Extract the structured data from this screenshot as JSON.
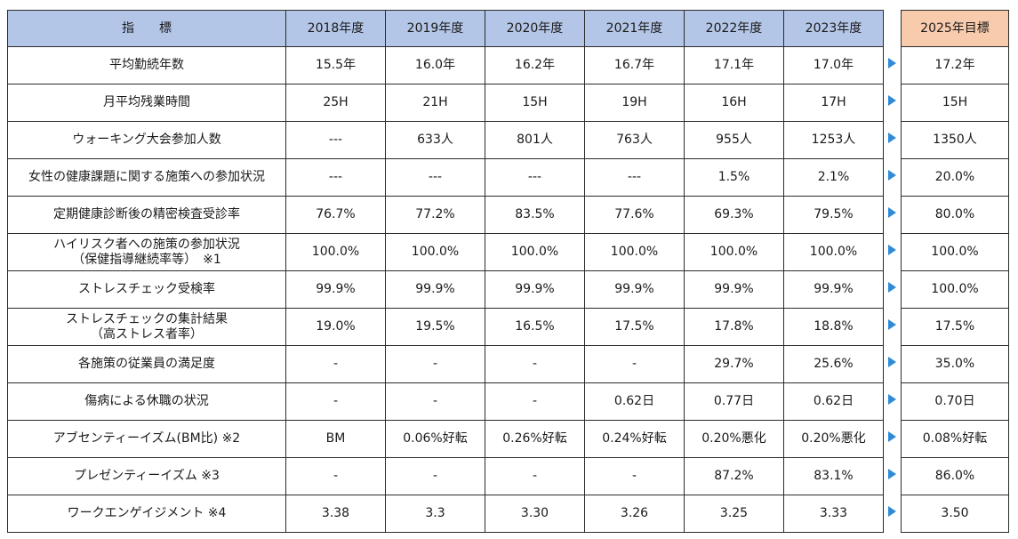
{
  "table": {
    "header": {
      "indicator_label": "指　　標",
      "years": [
        "2018年度",
        "2019年度",
        "2020年度",
        "2021年度",
        "2022年度",
        "2023年度"
      ],
      "target": "2025年目標"
    },
    "rows": [
      {
        "label": [
          "平均勤続年数"
        ],
        "values": [
          "15.5年",
          "16.0年",
          "16.2年",
          "16.7年",
          "17.1年",
          "17.0年"
        ],
        "target": "17.2年"
      },
      {
        "label": [
          "月平均残業時間"
        ],
        "values": [
          "25H",
          "21H",
          "15H",
          "19H",
          "16H",
          "17H"
        ],
        "target": "15H"
      },
      {
        "label": [
          "ウォーキング大会参加人数"
        ],
        "values": [
          "---",
          "633人",
          "801人",
          "763人",
          "955人",
          "1253人"
        ],
        "target": "1350人"
      },
      {
        "label": [
          "女性の健康課題に関する施策への参加状況"
        ],
        "values": [
          "---",
          "---",
          "---",
          "---",
          "1.5%",
          "2.1%"
        ],
        "target": "20.0%"
      },
      {
        "label": [
          "定期健康診断後の精密検査受診率"
        ],
        "values": [
          "76.7%",
          "77.2%",
          "83.5%",
          "77.6%",
          "69.3%",
          "79.5%"
        ],
        "target": "80.0%"
      },
      {
        "label": [
          "ハイリスク者への施策の参加状況",
          "（保健指導継続率等）　※1"
        ],
        "values": [
          "100.0%",
          "100.0%",
          "100.0%",
          "100.0%",
          "100.0%",
          "100.0%"
        ],
        "target": "100.0%"
      },
      {
        "label": [
          "ストレスチェック受検率"
        ],
        "values": [
          "99.9%",
          "99.9%",
          "99.9%",
          "99.9%",
          "99.9%",
          "99.9%"
        ],
        "target": "100.0%"
      },
      {
        "label": [
          "ストレスチェックの集計結果",
          "（高ストレス者率）"
        ],
        "values": [
          "19.0%",
          "19.5%",
          "16.5%",
          "17.5%",
          "17.8%",
          "18.8%"
        ],
        "target": "17.5%"
      },
      {
        "label": [
          "各施策の従業員の満足度"
        ],
        "values": [
          "-",
          "-",
          "-",
          "-",
          "29.7%",
          "25.6%"
        ],
        "target": "35.0%"
      },
      {
        "label": [
          "傷病による休職の状況"
        ],
        "values": [
          "-",
          "-",
          "-",
          "0.62日",
          "0.77日",
          "0.62日"
        ],
        "target": "0.70日"
      },
      {
        "label": [
          "アブセンティーイズム(BM比) ※2"
        ],
        "values": [
          "BM",
          "0.06%好転",
          "0.26%好転",
          "0.24%好転",
          "0.20%悪化",
          "0.20%悪化"
        ],
        "target": "0.08%好転"
      },
      {
        "label": [
          "プレゼンティーイズム ※3"
        ],
        "values": [
          "-",
          "-",
          "-",
          "-",
          "87.2%",
          "83.1%"
        ],
        "target": "86.0%"
      },
      {
        "label": [
          "ワークエンゲイジメント ※4"
        ],
        "values": [
          "3.38",
          "3.3",
          "3.30",
          "3.26",
          "3.25",
          "3.33"
        ],
        "target": "3.50"
      }
    ]
  },
  "colors": {
    "header_blue": "#b4c6e7",
    "target_orange": "#f8cbad",
    "arrow_blue": "#2e8bd8"
  },
  "icons": {
    "arrow": "triangle-right-icon"
  }
}
